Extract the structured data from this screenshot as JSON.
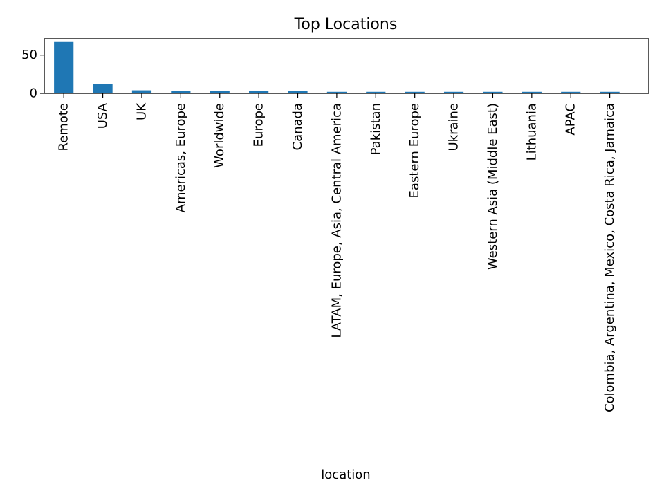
{
  "chart_data": {
    "type": "bar",
    "title": "Top Locations",
    "xlabel": "location",
    "ylabel": "",
    "categories": [
      "Remote",
      "USA",
      "UK",
      "Americas, Europe",
      "Worldwide",
      "Europe",
      "Canada",
      "LATAM, Europe, Asia, Central America",
      "Pakistan",
      "Eastern Europe",
      "Ukraine",
      "Western Asia (Middle East)",
      "Lithuania",
      "APAC",
      "Colombia, Argentina, Mexico, Costa Rica, Jamaica"
    ],
    "values": [
      68,
      12,
      4,
      3,
      3,
      3,
      3,
      2,
      2,
      2,
      2,
      2,
      2,
      2,
      2
    ],
    "ylim": [
      0,
      71.4
    ],
    "yticks": [
      0,
      50
    ],
    "grid": false,
    "legend": "none",
    "bar_color": "#1f77b4"
  }
}
